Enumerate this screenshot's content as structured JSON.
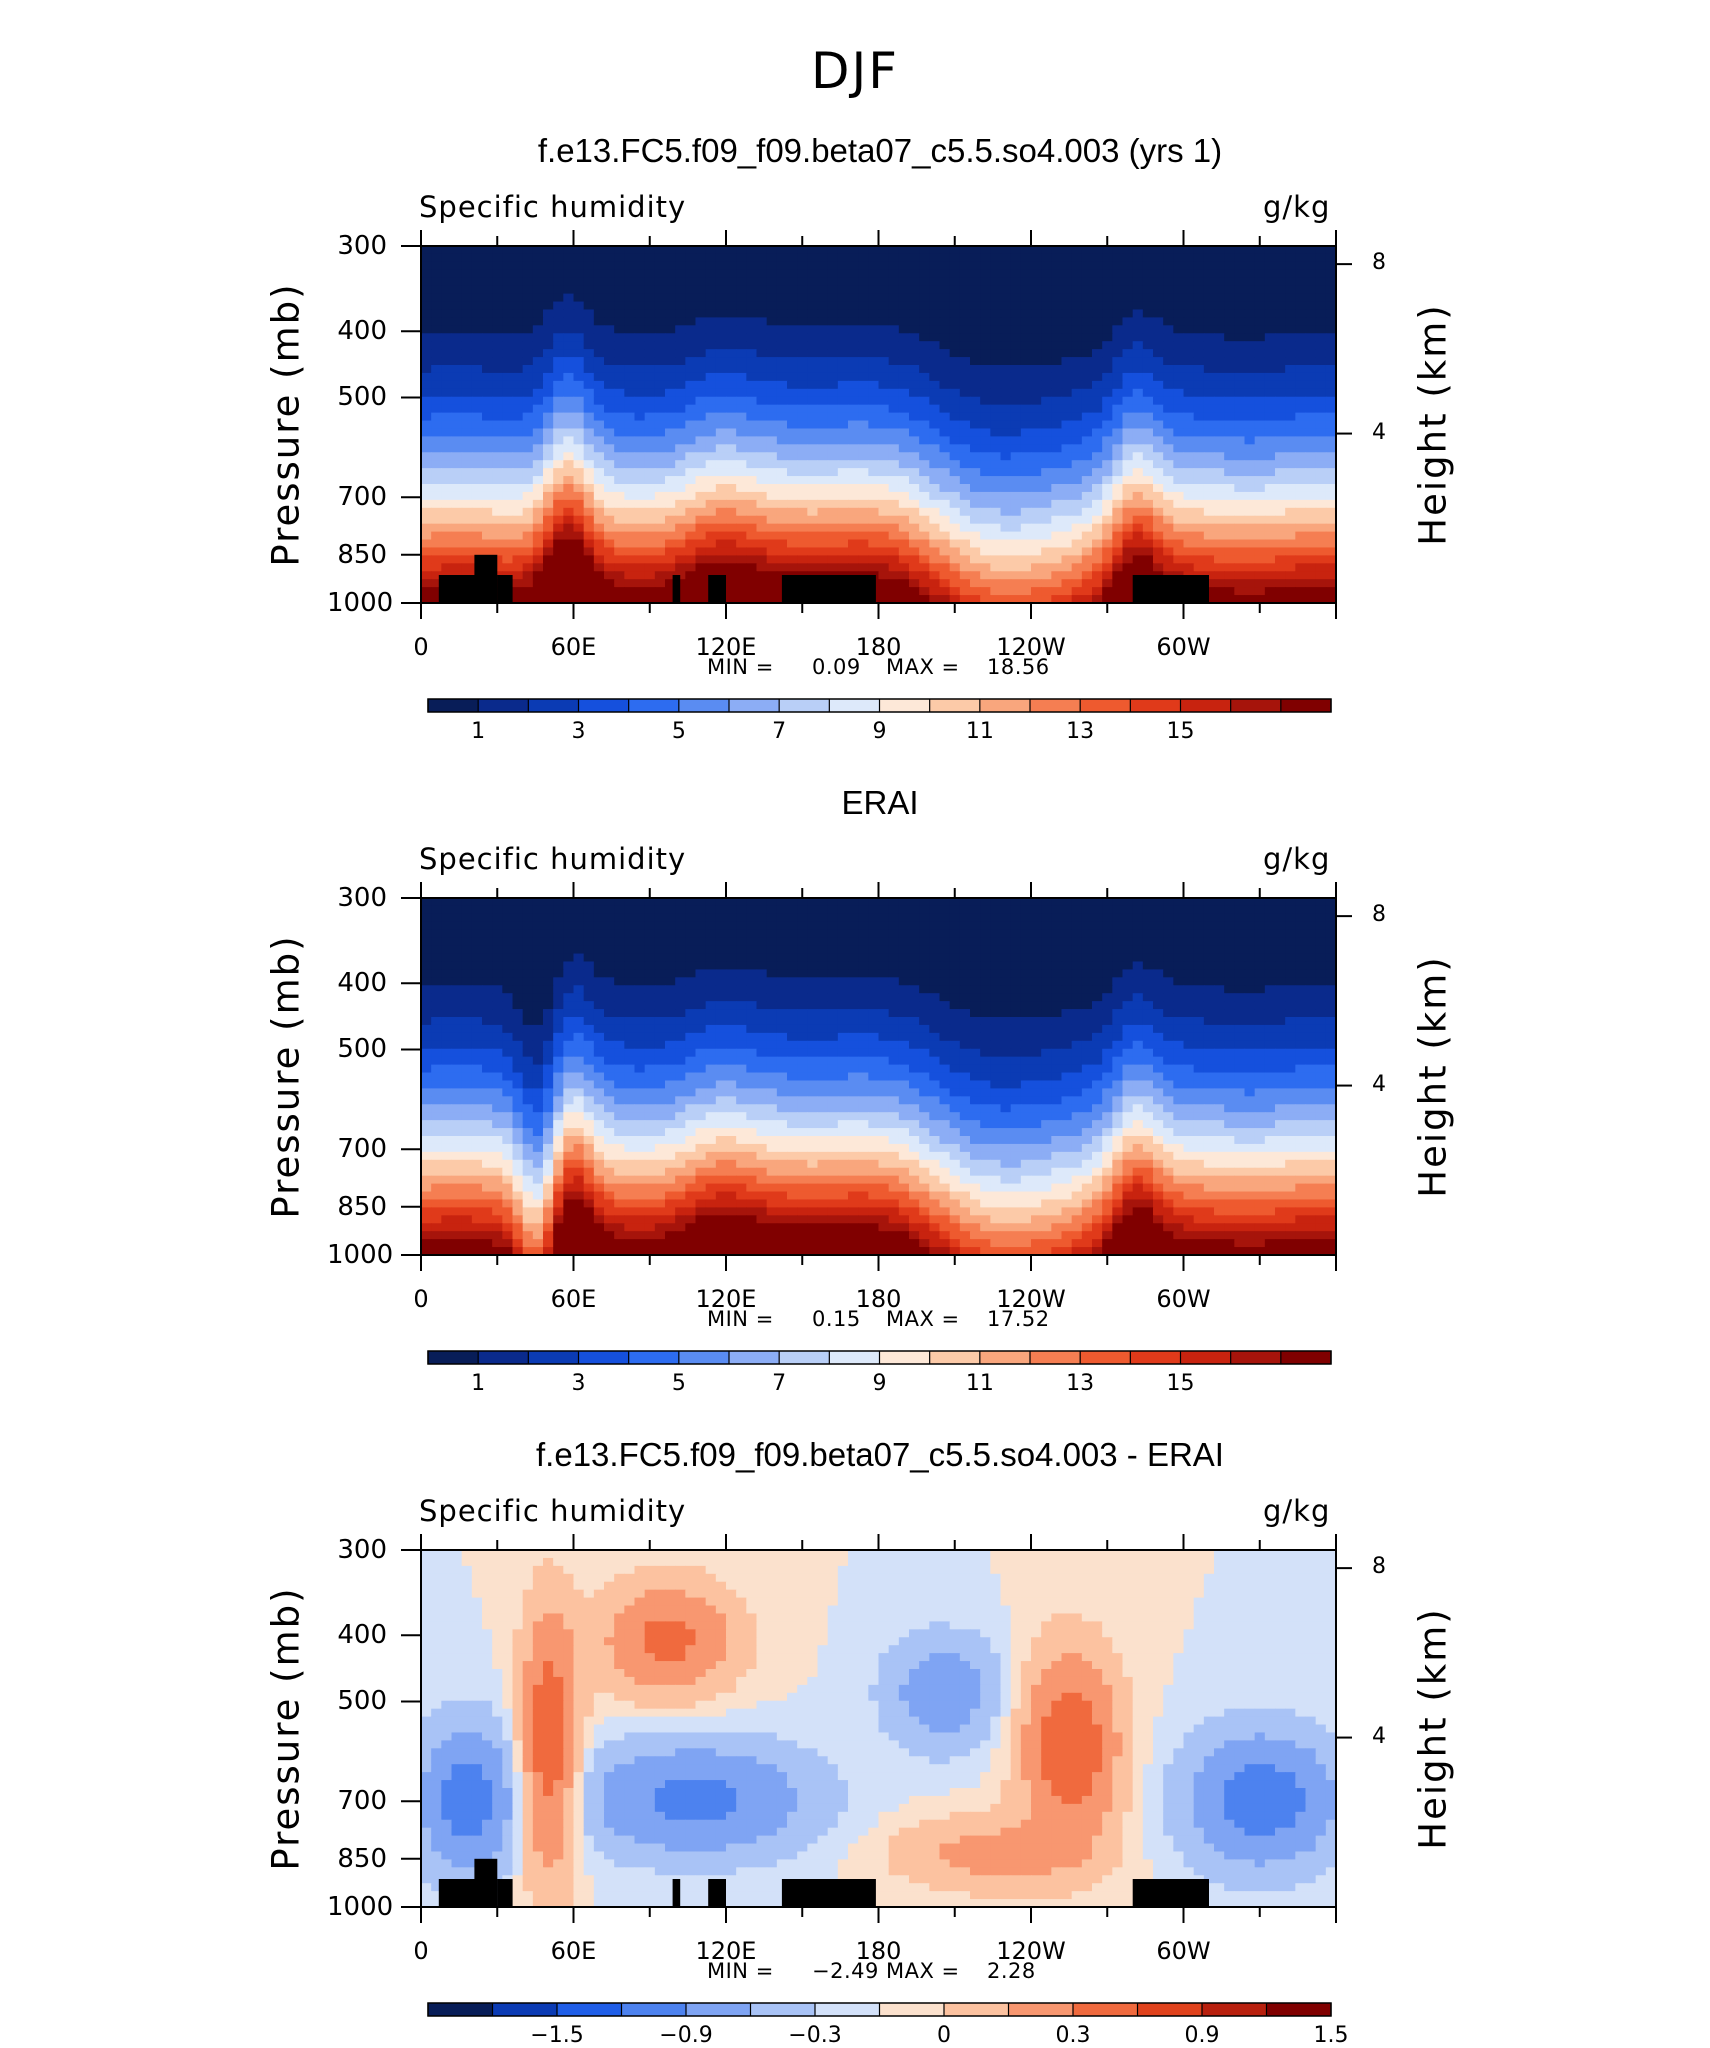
{
  "page": {
    "season": "DJF"
  },
  "colors": {
    "seq": [
      "#081d58",
      "#0a2a8c",
      "#0b3bb4",
      "#1550dd",
      "#2d6cf0",
      "#5a8cf2",
      "#8cadf5",
      "#b9cff7",
      "#dde9fa",
      "#fde8d8",
      "#fccaa8",
      "#f9a67d",
      "#f57e52",
      "#ee5a2f",
      "#e03a1a",
      "#c8230f",
      "#a6140b",
      "#800000"
    ],
    "diff": [
      "#081d58",
      "#0b3bb4",
      "#1f5ee8",
      "#4d82ef",
      "#7fa4f3",
      "#a9c3f6",
      "#d3e1f9",
      "#fbe1cd",
      "#fcc2a0",
      "#f89770",
      "#f06a3e",
      "#e0421c",
      "#b8200e",
      "#800000"
    ],
    "land": "#000000"
  },
  "chart_data": [
    {
      "type": "heatmap",
      "title": "f.e13.FC5.f09_f09.beta07_c5.5.so4.003 (yrs 1)",
      "variable": "Specific humidity",
      "units": "g/kg",
      "ylabel": "Pressure (mb)",
      "ylabel_right": "Height (km)",
      "yticks": [
        "300",
        "400",
        "500",
        "700",
        "850",
        "1000"
      ],
      "height_ticks": [
        "8",
        "4"
      ],
      "xticks": [
        "0",
        "60E",
        "120E",
        "180",
        "120W",
        "60W"
      ],
      "stats": {
        "min_label": "MIN =",
        "min": "0.09",
        "max_label": "MAX =",
        "max": "18.56"
      },
      "colorbar": {
        "labels": [
          "1",
          "3",
          "5",
          "7",
          "9",
          "11",
          "13",
          "15"
        ]
      }
    },
    {
      "type": "heatmap",
      "title": "ERAI",
      "variable": "Specific humidity",
      "units": "g/kg",
      "ylabel": "Pressure (mb)",
      "ylabel_right": "Height (km)",
      "yticks": [
        "300",
        "400",
        "500",
        "700",
        "850",
        "1000"
      ],
      "height_ticks": [
        "8",
        "4"
      ],
      "xticks": [
        "0",
        "60E",
        "120E",
        "180",
        "120W",
        "60W"
      ],
      "stats": {
        "min_label": "MIN =",
        "min": "0.15",
        "max_label": "MAX =",
        "max": "17.52"
      },
      "colorbar": {
        "labels": [
          "1",
          "3",
          "5",
          "7",
          "9",
          "11",
          "13",
          "15"
        ]
      }
    },
    {
      "type": "heatmap",
      "title": "f.e13.FC5.f09_f09.beta07_c5.5.so4.003 - ERAI",
      "variable": "Specific humidity",
      "units": "g/kg",
      "ylabel": "Pressure (mb)",
      "ylabel_right": "Height (km)",
      "yticks": [
        "300",
        "400",
        "500",
        "700",
        "850",
        "1000"
      ],
      "height_ticks": [
        "8",
        "4"
      ],
      "xticks": [
        "0",
        "60E",
        "120E",
        "180",
        "120W",
        "60W"
      ],
      "stats": {
        "min_label": "MIN =",
        "min": "−2.49",
        "max_label": "MAX =",
        "max": "2.28"
      },
      "colorbar": {
        "labels": [
          "−1.5",
          "−0.9",
          "−0.3",
          "0",
          "0.3",
          "0.9",
          "1.5"
        ]
      }
    }
  ]
}
